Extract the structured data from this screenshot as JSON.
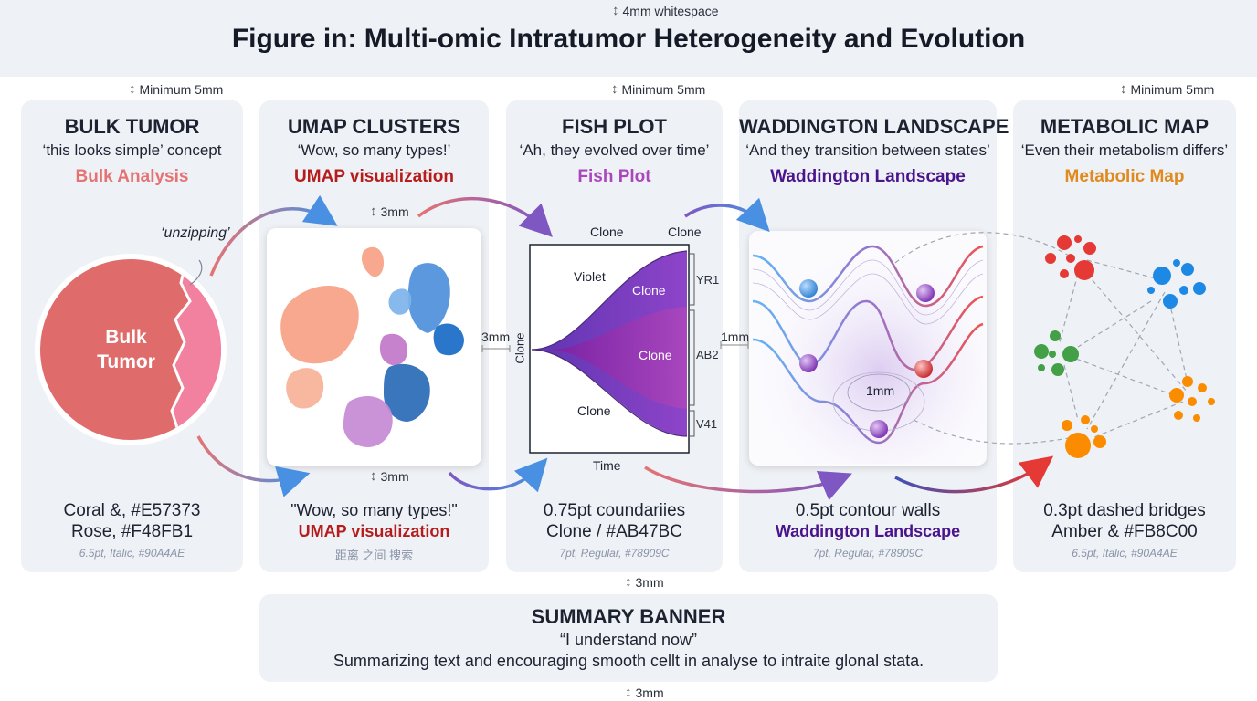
{
  "header": {
    "title": "Figure in: Multi-omic Intratumor Heterogeneity and Evolution",
    "top_whitespace": "4mm whitespace",
    "min_left": "Minimum 5mm",
    "min_center": "Minimum 5mm",
    "min_right": "Minimum 5mm"
  },
  "panels": {
    "bulk": {
      "title": "BULK TUMOR",
      "quote": "‘this looks simple’ concept",
      "name": "Bulk Analysis",
      "name_color": "#E57373",
      "annotation": "‘unzipping’",
      "circle_label_1": "Bulk",
      "circle_label_2": "Tumor",
      "footer_1": "Coral &, #E57373",
      "footer_2": "Rose, #F48FB1",
      "footer_3": "6.5pt, Italic, #90A4AE"
    },
    "umap": {
      "title": "UMAP CLUSTERS",
      "quote": "‘Wow, so many types!’",
      "name": "UMAP visualization",
      "name_color": "#B71C1C",
      "dim_top": "3mm",
      "dim_bottom": "3mm",
      "footer_1": "\"Wow, so many types!\"",
      "footer_2": "UMAP visualization",
      "footer_3": "距离 之间 搜索"
    },
    "fish": {
      "title": "FISH PLOT",
      "quote": "‘Ah, they evolved over time’",
      "name": "Fish Plot",
      "name_color": "#AB47BC",
      "dim_left": "3mm",
      "clone_top_1": "Clone",
      "clone_top_2": "Clone",
      "label_violet": "Violet",
      "label_clone_a": "Clone",
      "label_clone_b": "Clone",
      "label_clone_c": "Clone",
      "y_label": "Clone",
      "x_label": "Time",
      "bracket_1": "YR1",
      "bracket_2": "AB2",
      "bracket_3": "V41",
      "footer_1": "0.75pt coundariies",
      "footer_2": "Clone / #AB47BC",
      "footer_3": "7pt, Regular, #78909C"
    },
    "waddington": {
      "title": "WADDINGTON LANDSCAPE",
      "quote": "‘And they transition between states’",
      "name": "Waddington Landscape",
      "name_color": "#4A148C",
      "dim_left": "1mm",
      "dim_inner": "1mm",
      "footer_1": "0.5pt contour walls",
      "footer_2": "Waddington Landscape",
      "footer_3": "7pt, Regular, #78909C"
    },
    "metabolic": {
      "title": "METABOLIC MAP",
      "quote": "‘Even their metabolism differs’",
      "name": "Metabolic Map",
      "name_color": "#E08A20",
      "footer_1": "0.3pt dashed bridges",
      "footer_2": "Amber & #FB8C00",
      "footer_3": "6.5pt, Italic, #90A4AE"
    }
  },
  "summary": {
    "dim_top": "3mm",
    "title": "SUMMARY BANNER",
    "quote": "“I understand now”",
    "text": "Summarizing text and encouraging smooth cellt in analyse to intraite glonal stata.",
    "dim_bottom": "3mm"
  },
  "colors": {
    "coral": "#E57373",
    "rose": "#F48FB1",
    "violet": "#7E57C2",
    "purple": "#AB47BC",
    "blue": "#1E88E5",
    "red": "#E53935",
    "green": "#43A047",
    "amber": "#FB8C00"
  }
}
